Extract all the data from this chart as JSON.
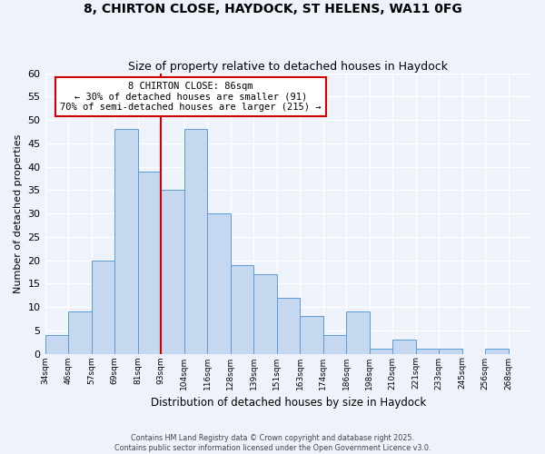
{
  "title": "8, CHIRTON CLOSE, HAYDOCK, ST HELENS, WA11 0FG",
  "subtitle": "Size of property relative to detached houses in Haydock",
  "xlabel": "Distribution of detached houses by size in Haydock",
  "ylabel": "Number of detached properties",
  "bin_labels": [
    "34sqm",
    "46sqm",
    "57sqm",
    "69sqm",
    "81sqm",
    "93sqm",
    "104sqm",
    "116sqm",
    "128sqm",
    "139sqm",
    "151sqm",
    "163sqm",
    "174sqm",
    "186sqm",
    "198sqm",
    "210sqm",
    "221sqm",
    "233sqm",
    "245sqm",
    "256sqm",
    "268sqm"
  ],
  "bar_heights": [
    4,
    9,
    20,
    48,
    39,
    35,
    48,
    30,
    19,
    17,
    12,
    8,
    4,
    9,
    1,
    3,
    1,
    1,
    0,
    1,
    0
  ],
  "bar_color": "#c5d8f0",
  "bar_edge_color": "#5b9bd5",
  "vline_position": 5,
  "vline_label": "8 CHIRTON CLOSE: 86sqm",
  "vline_color": "#cc0000",
  "annotation_line1": "8 CHIRTON CLOSE: 86sqm",
  "annotation_line2": "← 30% of detached houses are smaller (91)",
  "annotation_line3": "70% of semi-detached houses are larger (215) →",
  "annotation_box_color": "#ffffff",
  "annotation_box_edge": "#cc0000",
  "ylim": [
    0,
    60
  ],
  "footer1": "Contains HM Land Registry data © Crown copyright and database right 2025.",
  "footer2": "Contains public sector information licensed under the Open Government Licence v3.0.",
  "bg_color": "#eef2fb",
  "grid_color": "#ffffff",
  "n_bars": 21
}
